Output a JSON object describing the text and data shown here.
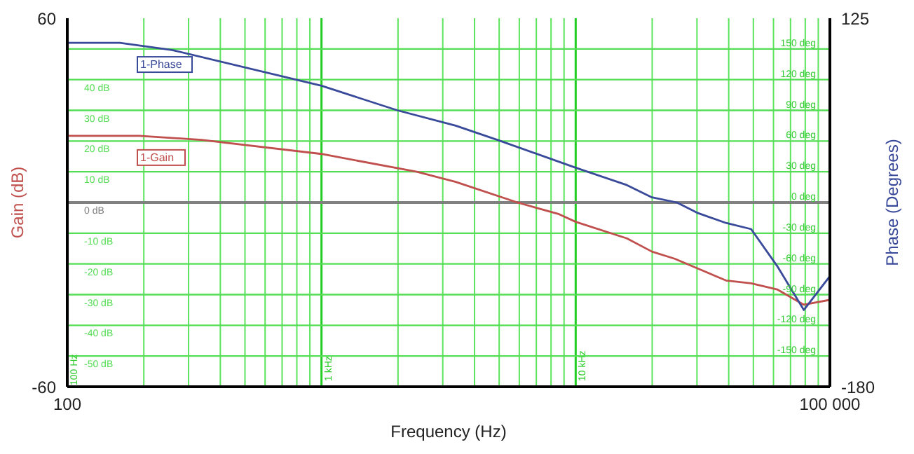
{
  "chart_data": {
    "type": "line",
    "xlabel": "Frequency (Hz)",
    "ylabel": "Gain (dB)",
    "y2label": "Phase (Degrees)",
    "log": "x",
    "grid": "x",
    "legend": false,
    "marker": "none",
    "line_style": "solid",
    "annotations": [
      "100 Hz"
    ],
    "xlim": [
      100,
      100000
    ],
    "xticks": [
      {
        "value": 100,
        "label": "100"
      },
      {
        "value": 200,
        "label": null
      },
      {
        "value": 300,
        "label": null
      },
      {
        "value": 400,
        "label": null
      },
      {
        "value": 500,
        "label": null
      },
      {
        "value": 600,
        "label": null
      },
      {
        "value": 700,
        "label": null
      },
      {
        "value": 800,
        "label": null
      },
      {
        "value": 900,
        "label": null
      },
      {
        "value": 2000,
        "label": null
      },
      {
        "value": 3000,
        "label": null
      },
      {
        "value": 4000,
        "label": null
      },
      {
        "value": 5000,
        "label": null
      },
      {
        "value": 6000,
        "label": null
      },
      {
        "value": 7000,
        "label": null
      },
      {
        "value": 8000,
        "label": null
      },
      {
        "value": 9000,
        "label": null
      },
      {
        "value": 20000,
        "label": null
      },
      {
        "value": 30000,
        "label": null
      },
      {
        "value": 40000,
        "label": null
      },
      {
        "value": 50000,
        "label": null
      },
      {
        "value": 60000,
        "label": null
      },
      {
        "value": 70000,
        "label": null
      },
      {
        "value": 80000,
        "label": null
      },
      {
        "value": 90000,
        "label": null
      },
      {
        "value": 100000,
        "label": "100 000"
      }
    ],
    "ylim": [
      -60,
      60
    ],
    "yticks": [
      -60,
      60
    ],
    "y2lim": [
      -180,
      125
    ],
    "y2ticks": [
      -180,
      125
    ],
    "y3lim": [
      -180,
      180
    ],
    "y3ticks": [
      {
        "value": 150,
        "label": "150 deg"
      },
      {
        "value": 120,
        "label": "120 deg"
      },
      {
        "value": 90,
        "label": "90 deg"
      },
      {
        "value": 60,
        "label": "60 deg"
      },
      {
        "value": 30,
        "label": "30 deg"
      },
      {
        "value": 0,
        "label": "0 deg"
      },
      {
        "value": -30,
        "label": "-30 deg"
      },
      {
        "value": -60,
        "label": "-60 deg"
      },
      {
        "value": -90,
        "label": "-90 deg"
      },
      {
        "value": -120,
        "label": "-120 deg"
      },
      {
        "value": -150,
        "label": "-150 deg"
      }
    ],
    "series": [
      {
        "name": "1-Gain",
        "color": "#c0504d",
        "x": [
          100,
          192,
          337,
          1000,
          2370,
          3374,
          5900,
          8600,
          10000,
          15900,
          19950,
          24500,
          39000,
          49000,
          62000,
          79000,
          100000
        ],
        "values": [
          21.7,
          21.7,
          20.4,
          15.8,
          10,
          6.7,
          0,
          -3.8,
          -6.3,
          -11.7,
          -16,
          -18.3,
          -25.4,
          -26.3,
          -28.3,
          -33.3,
          -31.7
        ]
      },
      {
        "name": "1-Phase",
        "color": "#3a4a9a",
        "axis": "y3",
        "x": [
          100,
          161,
          258,
          1000,
          1990,
          3374,
          4938,
          10000,
          15900,
          19950,
          25000,
          30000,
          39000,
          49000,
          62000,
          79000,
          100000
        ],
        "values": [
          156,
          156,
          149,
          114,
          90,
          75,
          61,
          34,
          17,
          5,
          0,
          -10,
          -20,
          -26,
          -62,
          -105,
          -72
        ]
      }
    ],
    "ref_lines": [
      {
        "axis": "x",
        "value": 1000,
        "label": "1 kHz",
        "color": "#22cc22"
      },
      {
        "axis": "x",
        "value": 10000,
        "label": "10 kHz",
        "color": "#22cc22"
      },
      {
        "axis": "y",
        "value": 50,
        "label": null,
        "color": "#55dd55"
      },
      {
        "axis": "y",
        "value": 40,
        "label": "40 dB",
        "color": "#55dd55"
      },
      {
        "axis": "y",
        "value": 30,
        "label": "30 dB",
        "color": "#55dd55"
      },
      {
        "axis": "y",
        "value": 20,
        "label": "20 dB",
        "color": "#55dd55"
      },
      {
        "axis": "y",
        "value": 10,
        "label": "10 dB",
        "color": "#55dd55"
      },
      {
        "axis": "y",
        "value": 0,
        "label": "0 dB",
        "color": "#808080"
      },
      {
        "axis": "y",
        "value": -10,
        "label": "-10 dB",
        "color": "#55dd55"
      },
      {
        "axis": "y",
        "value": -20,
        "label": "-20 dB",
        "color": "#55dd55"
      },
      {
        "axis": "y",
        "value": -30,
        "label": "-30 dB",
        "color": "#55dd55"
      },
      {
        "axis": "y",
        "value": -40,
        "label": "-40 dB",
        "color": "#55dd55"
      },
      {
        "axis": "y",
        "value": -50,
        "label": "-50 dB",
        "color": "#55dd55"
      }
    ]
  }
}
